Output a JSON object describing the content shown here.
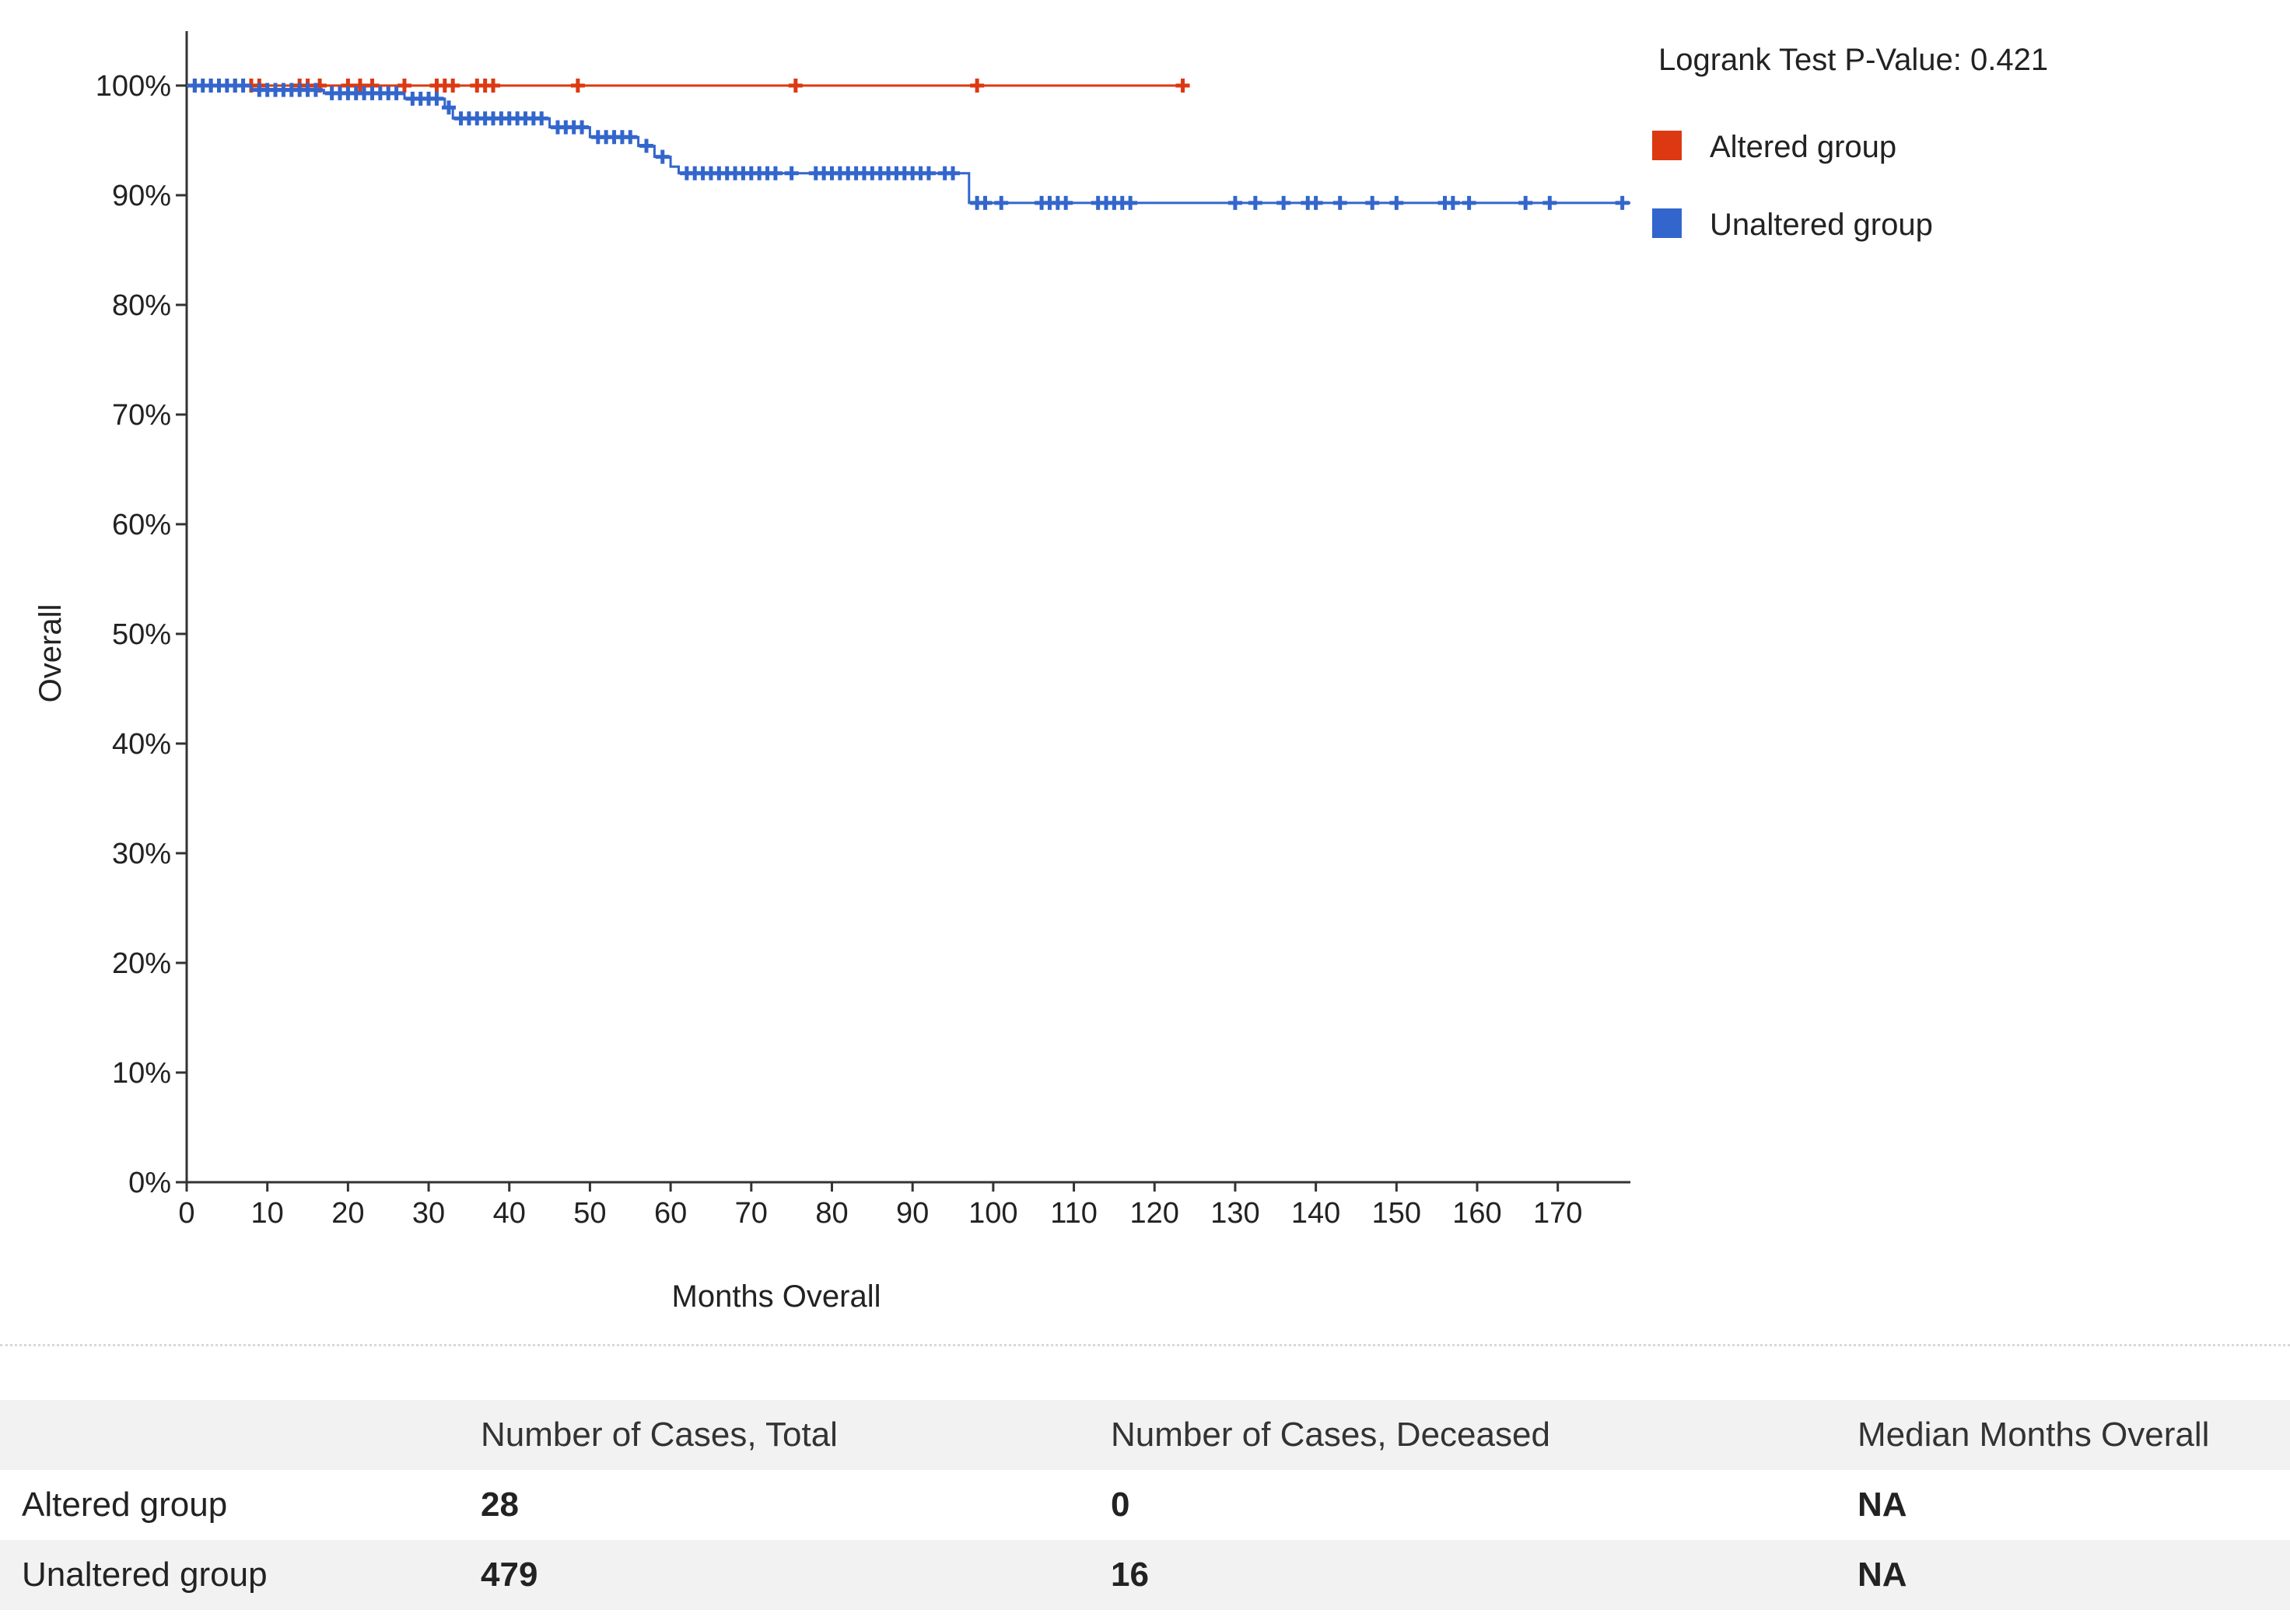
{
  "chart_data": {
    "type": "line",
    "title": "",
    "xlabel": "Months Overall",
    "ylabel": "Overall",
    "xlim": [
      0,
      179
    ],
    "ylim": [
      0,
      100
    ],
    "x_ticks": [
      0,
      10,
      20,
      30,
      40,
      50,
      60,
      70,
      80,
      90,
      100,
      110,
      120,
      130,
      140,
      150,
      160,
      170
    ],
    "y_ticks": [
      0,
      10,
      20,
      30,
      40,
      50,
      60,
      70,
      80,
      90,
      100
    ],
    "y_tick_labels": [
      "0%",
      "10%",
      "20%",
      "30%",
      "40%",
      "50%",
      "60%",
      "70%",
      "80%",
      "90%",
      "100%"
    ],
    "annotation": "Logrank Test P-Value: 0.421",
    "legend_position": "top-right",
    "series": [
      {
        "name": "Altered group",
        "color": "#dc3912",
        "curve": [
          [
            0,
            100
          ],
          [
            123.5,
            100
          ]
        ],
        "censored": [
          [
            1,
            100
          ],
          [
            3,
            100
          ],
          [
            6,
            100
          ],
          [
            8,
            100
          ],
          [
            9,
            100
          ],
          [
            14,
            100
          ],
          [
            15,
            100
          ],
          [
            16.5,
            100
          ],
          [
            20,
            100
          ],
          [
            21.5,
            100
          ],
          [
            23,
            100
          ],
          [
            27,
            100
          ],
          [
            31,
            100
          ],
          [
            32,
            100
          ],
          [
            33,
            100
          ],
          [
            36,
            100
          ],
          [
            37,
            100
          ],
          [
            38,
            100
          ],
          [
            48.5,
            100
          ],
          [
            75.5,
            100
          ],
          [
            98,
            100
          ],
          [
            123.5,
            100
          ]
        ]
      },
      {
        "name": "Unaltered group",
        "color": "#3366cc",
        "curve": [
          [
            0,
            100
          ],
          [
            8,
            100
          ],
          [
            8,
            99.6
          ],
          [
            17,
            99.6
          ],
          [
            17,
            99.3
          ],
          [
            27,
            99.3
          ],
          [
            27,
            98.8
          ],
          [
            32,
            98.8
          ],
          [
            32,
            98.0
          ],
          [
            33,
            98.0
          ],
          [
            33,
            97.0
          ],
          [
            45,
            97.0
          ],
          [
            45,
            96.2
          ],
          [
            50,
            96.2
          ],
          [
            50,
            95.3
          ],
          [
            56,
            95.3
          ],
          [
            56,
            94.5
          ],
          [
            58,
            94.5
          ],
          [
            58,
            93.5
          ],
          [
            60,
            93.5
          ],
          [
            60,
            92.6
          ],
          [
            61,
            92.6
          ],
          [
            61,
            92.0
          ],
          [
            97,
            92.0
          ],
          [
            97,
            89.3
          ],
          [
            179,
            89.3
          ]
        ],
        "censored": [
          [
            1,
            100
          ],
          [
            2,
            100
          ],
          [
            3,
            100
          ],
          [
            4,
            100
          ],
          [
            5,
            100
          ],
          [
            6,
            100
          ],
          [
            7,
            100
          ],
          [
            9,
            99.6
          ],
          [
            10,
            99.6
          ],
          [
            11,
            99.6
          ],
          [
            12,
            99.6
          ],
          [
            13,
            99.6
          ],
          [
            14,
            99.6
          ],
          [
            15,
            99.6
          ],
          [
            16,
            99.6
          ],
          [
            18,
            99.3
          ],
          [
            19,
            99.3
          ],
          [
            20,
            99.3
          ],
          [
            21,
            99.3
          ],
          [
            22,
            99.3
          ],
          [
            23,
            99.3
          ],
          [
            24,
            99.3
          ],
          [
            25,
            99.3
          ],
          [
            26,
            99.3
          ],
          [
            28,
            98.8
          ],
          [
            29,
            98.8
          ],
          [
            30,
            98.8
          ],
          [
            31,
            98.8
          ],
          [
            32.5,
            98.0
          ],
          [
            34,
            97.0
          ],
          [
            35,
            97.0
          ],
          [
            36,
            97.0
          ],
          [
            37,
            97.0
          ],
          [
            38,
            97.0
          ],
          [
            39,
            97.0
          ],
          [
            40,
            97.0
          ],
          [
            41,
            97.0
          ],
          [
            42,
            97.0
          ],
          [
            43,
            97.0
          ],
          [
            44,
            97.0
          ],
          [
            46,
            96.2
          ],
          [
            47,
            96.2
          ],
          [
            48,
            96.2
          ],
          [
            49,
            96.2
          ],
          [
            51,
            95.3
          ],
          [
            52,
            95.3
          ],
          [
            53,
            95.3
          ],
          [
            54,
            95.3
          ],
          [
            55,
            95.3
          ],
          [
            57,
            94.5
          ],
          [
            59,
            93.5
          ],
          [
            62,
            92.0
          ],
          [
            63,
            92.0
          ],
          [
            64,
            92.0
          ],
          [
            65,
            92.0
          ],
          [
            66,
            92.0
          ],
          [
            67,
            92.0
          ],
          [
            68,
            92.0
          ],
          [
            69,
            92.0
          ],
          [
            70,
            92.0
          ],
          [
            71,
            92.0
          ],
          [
            72,
            92.0
          ],
          [
            73,
            92.0
          ],
          [
            75,
            92.0
          ],
          [
            78,
            92.0
          ],
          [
            79,
            92.0
          ],
          [
            80,
            92.0
          ],
          [
            81,
            92.0
          ],
          [
            82,
            92.0
          ],
          [
            83,
            92.0
          ],
          [
            84,
            92.0
          ],
          [
            85,
            92.0
          ],
          [
            86,
            92.0
          ],
          [
            87,
            92.0
          ],
          [
            88,
            92.0
          ],
          [
            89,
            92.0
          ],
          [
            90,
            92.0
          ],
          [
            91,
            92.0
          ],
          [
            92,
            92.0
          ],
          [
            94,
            92.0
          ],
          [
            95,
            92.0
          ],
          [
            98,
            89.3
          ],
          [
            99,
            89.3
          ],
          [
            101,
            89.3
          ],
          [
            106,
            89.3
          ],
          [
            107,
            89.3
          ],
          [
            108,
            89.3
          ],
          [
            109,
            89.3
          ],
          [
            113,
            89.3
          ],
          [
            114,
            89.3
          ],
          [
            115,
            89.3
          ],
          [
            116,
            89.3
          ],
          [
            117,
            89.3
          ],
          [
            130,
            89.3
          ],
          [
            132.5,
            89.3
          ],
          [
            136,
            89.3
          ],
          [
            139,
            89.3
          ],
          [
            140,
            89.3
          ],
          [
            143,
            89.3
          ],
          [
            147,
            89.3
          ],
          [
            150,
            89.3
          ],
          [
            156,
            89.3
          ],
          [
            157,
            89.3
          ],
          [
            159,
            89.3
          ],
          [
            166,
            89.3
          ],
          [
            169,
            89.3
          ],
          [
            178,
            89.3
          ]
        ]
      }
    ]
  },
  "table": {
    "headers": [
      "",
      "Number of Cases, Total",
      "Number of Cases, Deceased",
      "Median Months Overall"
    ],
    "rows": [
      [
        "Altered group",
        "28",
        "0",
        "NA"
      ],
      [
        "Unaltered group",
        "479",
        "16",
        "NA"
      ]
    ]
  }
}
